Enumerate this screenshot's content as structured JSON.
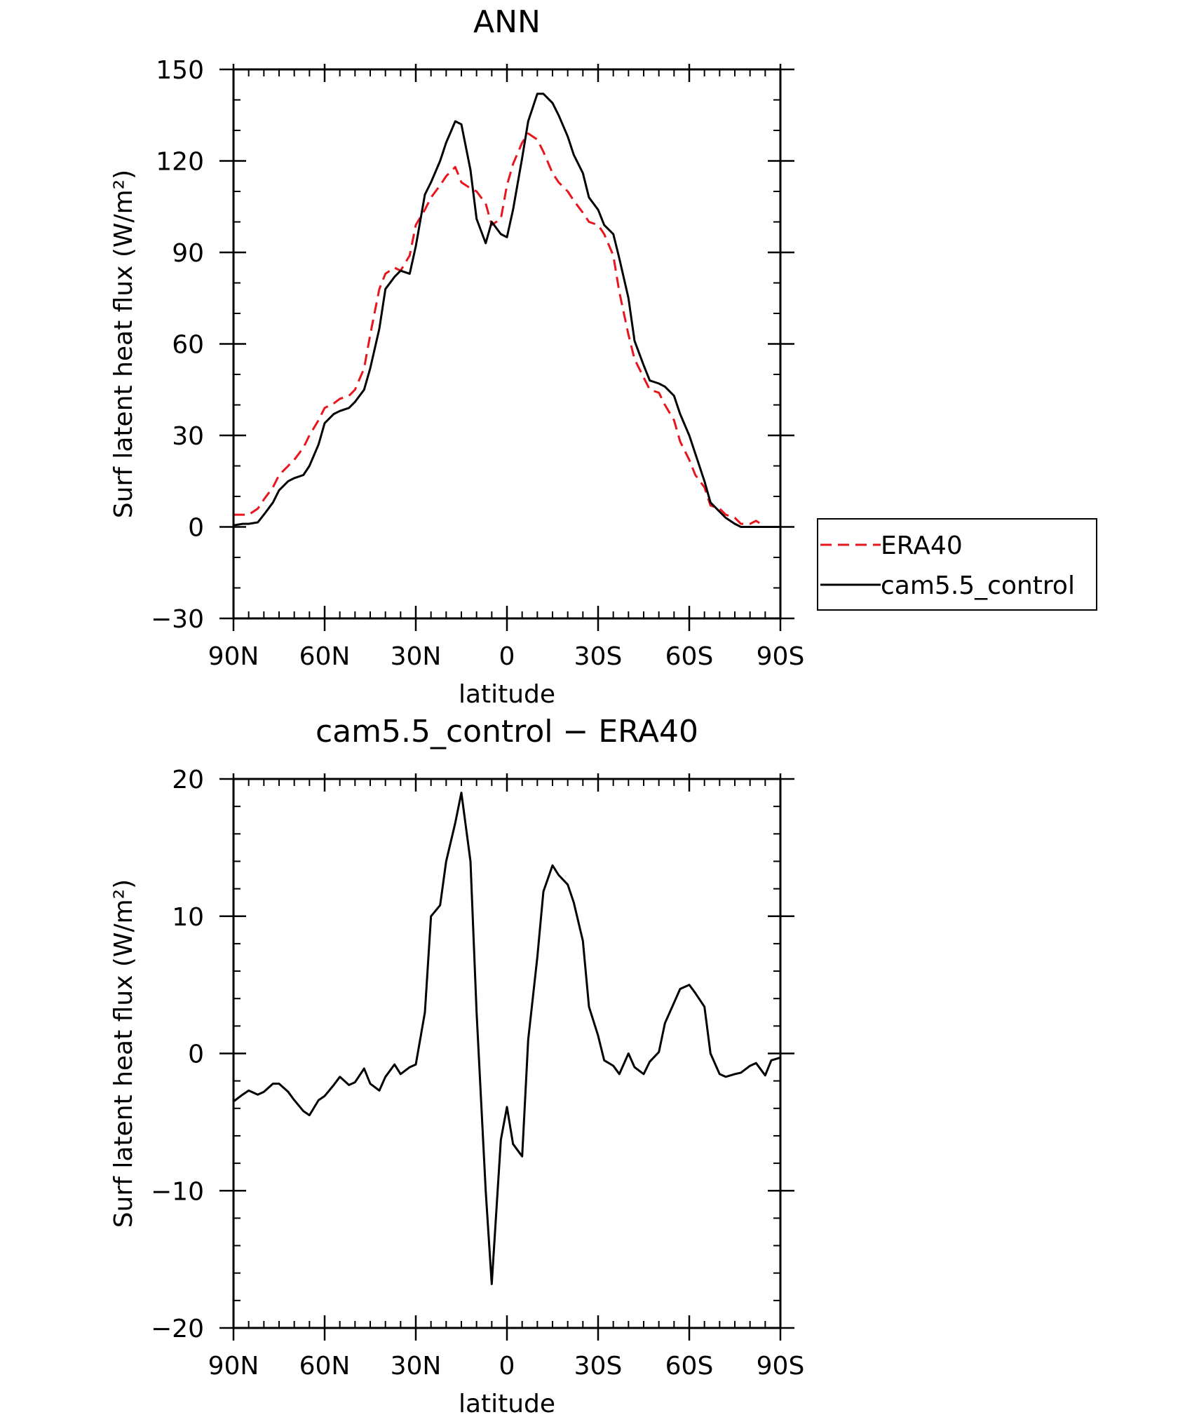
{
  "chart_data": [
    {
      "type": "line",
      "title": "ANN",
      "xlabel": "latitude",
      "ylabel": "Surf latent heat flux (W/m²)",
      "xlim": [
        90,
        -90
      ],
      "ylim": [
        -30,
        150
      ],
      "xticks": [
        90,
        60,
        30,
        0,
        -30,
        -60,
        -90
      ],
      "xtick_labels": [
        "90N",
        "60N",
        "30N",
        "0",
        "30S",
        "60S",
        "90S"
      ],
      "yticks": [
        -30,
        0,
        30,
        60,
        90,
        120,
        150
      ],
      "ytick_labels": [
        "−30",
        "0",
        "30",
        "60",
        "90",
        "120",
        "150"
      ],
      "legend_position": "outside-right",
      "series": [
        {
          "name": "ERA40",
          "color": "#e8161c",
          "dash": "dashed",
          "points": [
            [
              90,
              4
            ],
            [
              85,
              4
            ],
            [
              82,
              6
            ],
            [
              80,
              9
            ],
            [
              77,
              13
            ],
            [
              75,
              17
            ],
            [
              72,
              20
            ],
            [
              70,
              22
            ],
            [
              67,
              26
            ],
            [
              65,
              30
            ],
            [
              62,
              35
            ],
            [
              60,
              39
            ],
            [
              57,
              40.5
            ],
            [
              55,
              42
            ],
            [
              52,
              43
            ],
            [
              50,
              45
            ],
            [
              47,
              52
            ],
            [
              45,
              63
            ],
            [
              42,
              78
            ],
            [
              40,
              83
            ],
            [
              37,
              85
            ],
            [
              35,
              84
            ],
            [
              32,
              89
            ],
            [
              30,
              99
            ],
            [
              27,
              104
            ],
            [
              25,
              108
            ],
            [
              22,
              112
            ],
            [
              20,
              115
            ],
            [
              17,
              118
            ],
            [
              15,
              113
            ],
            [
              12,
              111
            ],
            [
              10,
              110
            ],
            [
              7,
              106
            ],
            [
              5,
              99
            ],
            [
              2,
              101
            ],
            [
              0,
              112
            ],
            [
              -2,
              119
            ],
            [
              -5,
              126
            ],
            [
              -7,
              129
            ],
            [
              -10,
              127
            ],
            [
              -12,
              123
            ],
            [
              -15,
              116
            ],
            [
              -17,
              113
            ],
            [
              -20,
              110
            ],
            [
              -22,
              107
            ],
            [
              -25,
              103
            ],
            [
              -27,
              100
            ],
            [
              -30,
              99
            ],
            [
              -32,
              96
            ],
            [
              -35,
              89
            ],
            [
              -37,
              77
            ],
            [
              -40,
              63
            ],
            [
              -42,
              55
            ],
            [
              -45,
              49
            ],
            [
              -47,
              45
            ],
            [
              -50,
              44
            ],
            [
              -52,
              40
            ],
            [
              -55,
              35
            ],
            [
              -57,
              28
            ],
            [
              -60,
              22
            ],
            [
              -62,
              17
            ],
            [
              -65,
              13
            ],
            [
              -67,
              7
            ],
            [
              -70,
              6
            ],
            [
              -72,
              4
            ],
            [
              -75,
              3
            ],
            [
              -77,
              1
            ],
            [
              -80,
              1
            ],
            [
              -82,
              2
            ],
            [
              -85,
              0
            ],
            [
              -87,
              0
            ],
            [
              -90,
              0
            ]
          ]
        },
        {
          "name": "cam5.5_control",
          "color": "#000000",
          "dash": "solid",
          "points": [
            [
              90,
              0.5
            ],
            [
              87,
              1
            ],
            [
              85,
              1
            ],
            [
              82,
              1.5
            ],
            [
              80,
              4
            ],
            [
              77,
              8
            ],
            [
              75,
              12
            ],
            [
              72,
              15
            ],
            [
              70,
              16
            ],
            [
              67,
              17
            ],
            [
              65,
              20
            ],
            [
              62,
              27
            ],
            [
              60,
              34
            ],
            [
              57,
              37
            ],
            [
              55,
              38
            ],
            [
              52,
              39
            ],
            [
              50,
              41
            ],
            [
              47,
              45
            ],
            [
              45,
              52
            ],
            [
              42,
              65
            ],
            [
              40,
              78
            ],
            [
              37,
              82
            ],
            [
              35,
              84
            ],
            [
              32,
              83
            ],
            [
              30,
              92
            ],
            [
              27,
              109
            ],
            [
              25,
              113
            ],
            [
              22,
              120
            ],
            [
              20,
              126
            ],
            [
              17,
              133
            ],
            [
              15,
              132
            ],
            [
              12,
              117
            ],
            [
              10,
              101
            ],
            [
              7,
              93
            ],
            [
              5,
              100
            ],
            [
              2,
              96
            ],
            [
              0,
              95
            ],
            [
              -2,
              104
            ],
            [
              -5,
              121
            ],
            [
              -7,
              133
            ],
            [
              -10,
              142
            ],
            [
              -12,
              142
            ],
            [
              -15,
              139
            ],
            [
              -17,
              135
            ],
            [
              -20,
              128
            ],
            [
              -22,
              122
            ],
            [
              -25,
              116
            ],
            [
              -27,
              108
            ],
            [
              -30,
              104
            ],
            [
              -32,
              99
            ],
            [
              -35,
              96
            ],
            [
              -37,
              88
            ],
            [
              -40,
              75
            ],
            [
              -42,
              61
            ],
            [
              -45,
              53
            ],
            [
              -47,
              48
            ],
            [
              -50,
              47
            ],
            [
              -52,
              46
            ],
            [
              -55,
              43
            ],
            [
              -57,
              37
            ],
            [
              -60,
              30
            ],
            [
              -62,
              24
            ],
            [
              -65,
              15
            ],
            [
              -67,
              8
            ],
            [
              -70,
              5
            ],
            [
              -72,
              3
            ],
            [
              -75,
              1
            ],
            [
              -77,
              0
            ],
            [
              -80,
              0
            ],
            [
              -82,
              0
            ],
            [
              -85,
              0
            ],
            [
              -87,
              0
            ],
            [
              -90,
              0
            ]
          ]
        }
      ]
    },
    {
      "type": "line",
      "title": "cam5.5_control − ERA40",
      "xlabel": "latitude",
      "ylabel": "Surf latent heat flux (W/m²)",
      "xlim": [
        90,
        -90
      ],
      "ylim": [
        -20,
        20
      ],
      "xticks": [
        90,
        60,
        30,
        0,
        -30,
        -60,
        -90
      ],
      "xtick_labels": [
        "90N",
        "60N",
        "30N",
        "0",
        "30S",
        "60S",
        "90S"
      ],
      "yticks": [
        -20,
        -10,
        0,
        10,
        20
      ],
      "ytick_labels": [
        "−20",
        "−10",
        "0",
        "10",
        "20"
      ],
      "series": [
        {
          "color": "#000000",
          "dash": "solid",
          "points": [
            [
              90,
              -3.5
            ],
            [
              87,
              -3
            ],
            [
              85,
              -2.7
            ],
            [
              82,
              -3
            ],
            [
              80,
              -2.8
            ],
            [
              77,
              -2.2
            ],
            [
              75,
              -2.2
            ],
            [
              72,
              -2.8
            ],
            [
              70,
              -3.4
            ],
            [
              67,
              -4.2
            ],
            [
              65,
              -4.5
            ],
            [
              62,
              -3.4
            ],
            [
              60,
              -3.1
            ],
            [
              57,
              -2.3
            ],
            [
              55,
              -1.7
            ],
            [
              52,
              -2.3
            ],
            [
              50,
              -2.1
            ],
            [
              47,
              -1.1
            ],
            [
              45,
              -2.2
            ],
            [
              42,
              -2.7
            ],
            [
              40,
              -1.7
            ],
            [
              37,
              -0.8
            ],
            [
              35,
              -1.5
            ],
            [
              32,
              -1
            ],
            [
              30,
              -0.8
            ],
            [
              27,
              3
            ],
            [
              25,
              10
            ],
            [
              22,
              10.8
            ],
            [
              20,
              14
            ],
            [
              17,
              16.8
            ],
            [
              15,
              19
            ],
            [
              12,
              14
            ],
            [
              10,
              3
            ],
            [
              7,
              -10
            ],
            [
              5,
              -16.8
            ],
            [
              2,
              -6.3
            ],
            [
              0,
              -3.9
            ],
            [
              -2,
              -6.6
            ],
            [
              -5,
              -7.5
            ],
            [
              -7,
              1
            ],
            [
              -10,
              7
            ],
            [
              -12,
              11.8
            ],
            [
              -15,
              13.7
            ],
            [
              -17,
              13
            ],
            [
              -20,
              12.3
            ],
            [
              -22,
              11
            ],
            [
              -25,
              8.2
            ],
            [
              -27,
              3.4
            ],
            [
              -30,
              1.3
            ],
            [
              -32,
              -0.5
            ],
            [
              -35,
              -0.9
            ],
            [
              -37,
              -1.5
            ],
            [
              -40,
              0
            ],
            [
              -42,
              -1
            ],
            [
              -45,
              -1.5
            ],
            [
              -47,
              -0.6
            ],
            [
              -50,
              0.1
            ],
            [
              -52,
              2.2
            ],
            [
              -55,
              3.7
            ],
            [
              -57,
              4.7
            ],
            [
              -60,
              5
            ],
            [
              -62,
              4.4
            ],
            [
              -65,
              3.4
            ],
            [
              -67,
              0
            ],
            [
              -70,
              -1.5
            ],
            [
              -72,
              -1.7
            ],
            [
              -75,
              -1.5
            ],
            [
              -77,
              -1.4
            ],
            [
              -80,
              -0.9
            ],
            [
              -82,
              -0.7
            ],
            [
              -85,
              -1.6
            ],
            [
              -87,
              -0.5
            ],
            [
              -90,
              -0.3
            ]
          ]
        }
      ]
    }
  ]
}
